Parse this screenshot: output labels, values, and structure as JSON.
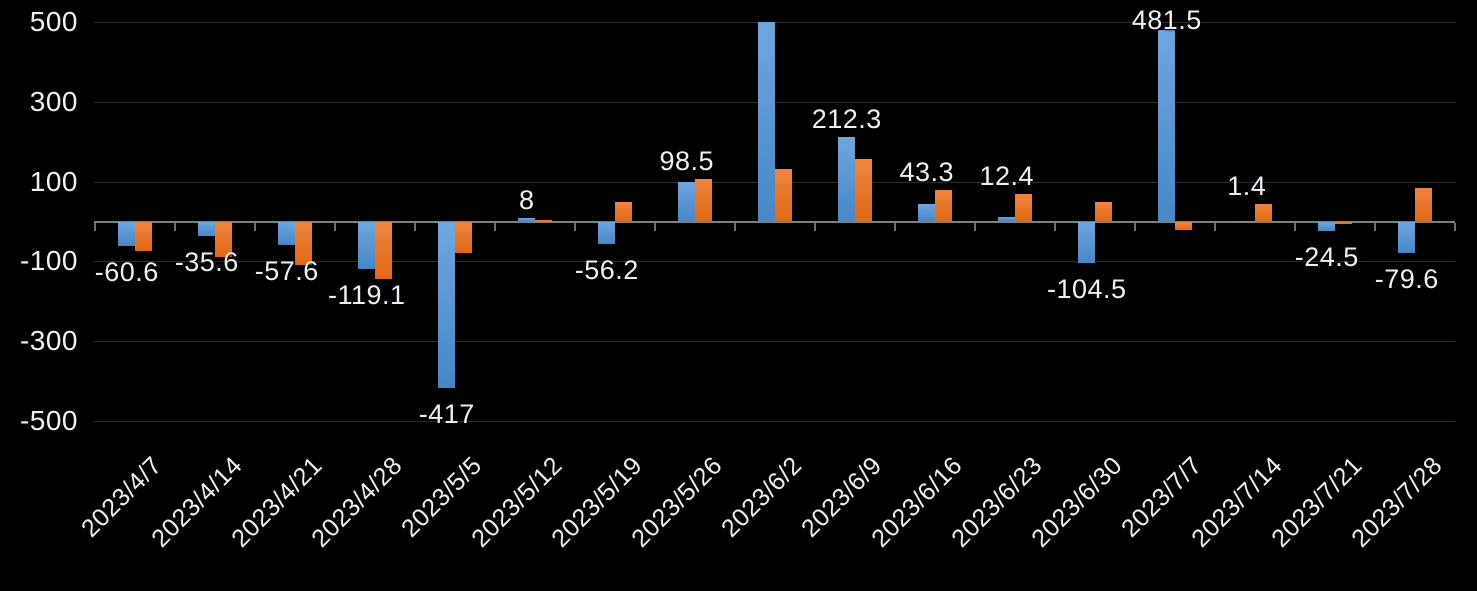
{
  "chart_data": {
    "type": "bar",
    "title": "",
    "xlabel": "",
    "ylabel": "",
    "categories": [
      "2023/4/7",
      "2023/4/14",
      "2023/4/21",
      "2023/4/28",
      "2023/5/5",
      "2023/5/12",
      "2023/5/19",
      "2023/5/26",
      "2023/6/2",
      "2023/6/9",
      "2023/6/16",
      "2023/6/23",
      "2023/6/30",
      "2023/7/7",
      "2023/7/14",
      "2023/7/21",
      "2023/7/28"
    ],
    "series": [
      {
        "name": "blue-series",
        "values": [
          -60.6,
          -35.6,
          -57.6,
          -119.1,
          -417,
          8,
          -56.2,
          98.5,
          500,
          212.3,
          43.3,
          12.4,
          -104.5,
          481.5,
          1.4,
          -24.5,
          -79.6
        ]
      },
      {
        "name": "orange-series",
        "values": [
          -75,
          -90,
          -110,
          -145,
          -78,
          5,
          48,
          107,
          132,
          158,
          80,
          68,
          50,
          -20,
          45,
          -5,
          85
        ]
      }
    ],
    "data_labels": [
      "-60.6",
      "-35.6",
      "-57.6",
      "-119.1",
      "-417",
      "8",
      "-56.2",
      "98.5",
      "",
      "212.3",
      "43.3",
      "12.4",
      "-104.5",
      "481.5",
      "1.4",
      "-24.5",
      "-79.6"
    ],
    "data_label_series": "blue-series",
    "y_ticks": [
      {
        "label": "500",
        "value": 500
      },
      {
        "label": "300",
        "value": 300
      },
      {
        "label": "100",
        "value": 100
      },
      {
        "label": "-100",
        "value": -100
      },
      {
        "label": "-300",
        "value": -300
      },
      {
        "label": "-500",
        "value": -500
      }
    ],
    "ylim": [
      -500,
      500
    ],
    "grid": true,
    "legend": "none",
    "colors": {
      "background": "#000000",
      "blue_top": "#6ea7de",
      "blue_bottom": "#4886c6",
      "orange_top": "#f08440",
      "orange_bottom": "#e16914",
      "gridline": "#2d2d2d",
      "axis": "#7f7f7f",
      "tick": "#6f6f6f",
      "text": "#eef1f6"
    }
  }
}
